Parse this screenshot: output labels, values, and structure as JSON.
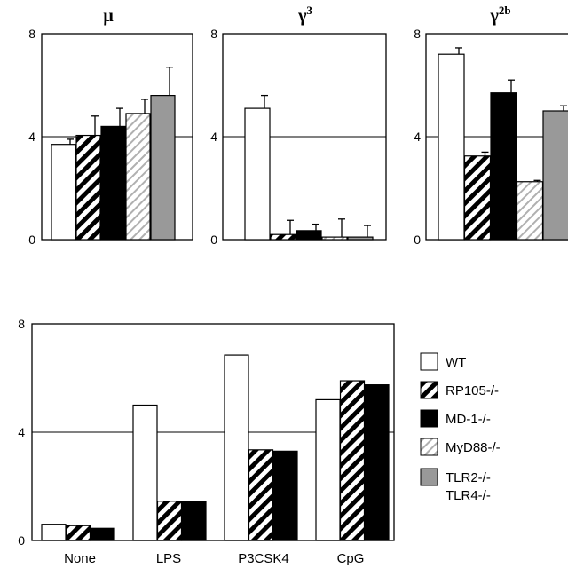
{
  "colors": {
    "WT": "#ffffff",
    "RP105-/-": "hatch-black",
    "MD-1-/-": "#000000",
    "MyD88-/-": "hatch-gray",
    "TLR2-/- TLR4-/-": "#999999",
    "frame": "#000000",
    "background": "#ffffff"
  },
  "chart_data": [
    {
      "type": "bar",
      "title": "μ",
      "ylim": [
        0,
        8
      ],
      "yticks": [
        "0",
        "4",
        "8"
      ],
      "reference_line": 4,
      "series": [
        {
          "name": "WT",
          "value": 3.7,
          "error": 0.2
        },
        {
          "name": "RP105-/-",
          "value": 4.05,
          "error": 0.75
        },
        {
          "name": "MD-1-/-",
          "value": 4.4,
          "error": 0.7
        },
        {
          "name": "MyD88-/-",
          "value": 4.9,
          "error": 0.55
        },
        {
          "name": "TLR2-/- TLR4-/-",
          "value": 5.6,
          "error": 1.1
        }
      ]
    },
    {
      "type": "bar",
      "title": "γ",
      "title_sup": "3",
      "ylim": [
        0,
        8
      ],
      "yticks": [
        "0",
        "4",
        "8"
      ],
      "reference_line": 4,
      "series": [
        {
          "name": "WT",
          "value": 5.1,
          "error": 0.5
        },
        {
          "name": "RP105-/-",
          "value": 0.2,
          "error": 0.55
        },
        {
          "name": "MD-1-/-",
          "value": 0.35,
          "error": 0.25
        },
        {
          "name": "MyD88-/-",
          "value": 0.1,
          "error": 0.7
        },
        {
          "name": "TLR2-/- TLR4-/-",
          "value": 0.1,
          "error": 0.45
        }
      ]
    },
    {
      "type": "bar",
      "title": "γ",
      "title_sup": "2b",
      "ylim": [
        0,
        8
      ],
      "yticks": [
        "0",
        "4",
        "8"
      ],
      "reference_line": 4,
      "series": [
        {
          "name": "WT",
          "value": 7.2,
          "error": 0.25
        },
        {
          "name": "RP105-/-",
          "value": 3.25,
          "error": 0.15
        },
        {
          "name": "MD-1-/-",
          "value": 5.7,
          "error": 0.5
        },
        {
          "name": "MyD88-/-",
          "value": 2.25,
          "error": 0.05
        },
        {
          "name": "TLR2-/- TLR4-/-",
          "value": 5.0,
          "error": 0.2
        }
      ]
    },
    {
      "type": "bar",
      "title": "",
      "ylim": [
        0,
        8
      ],
      "yticks": [
        "0",
        "4",
        "8"
      ],
      "reference_line": 4,
      "categories": [
        "None",
        "LPS",
        "P3CSK4",
        "CpG"
      ],
      "series": [
        {
          "name": "WT",
          "values": [
            0.6,
            5.0,
            6.85,
            5.2
          ]
        },
        {
          "name": "RP105-/-",
          "values": [
            0.55,
            1.45,
            3.35,
            5.9
          ]
        },
        {
          "name": "MD-1-/-",
          "values": [
            0.45,
            1.45,
            3.3,
            5.75
          ]
        }
      ]
    }
  ],
  "legend": {
    "placement": "right",
    "items": [
      "WT",
      "RP105-/-",
      "MD-1-/-",
      "MyD88-/-",
      "TLR2-/-"
    ],
    "continuation": "TLR4-/-"
  }
}
